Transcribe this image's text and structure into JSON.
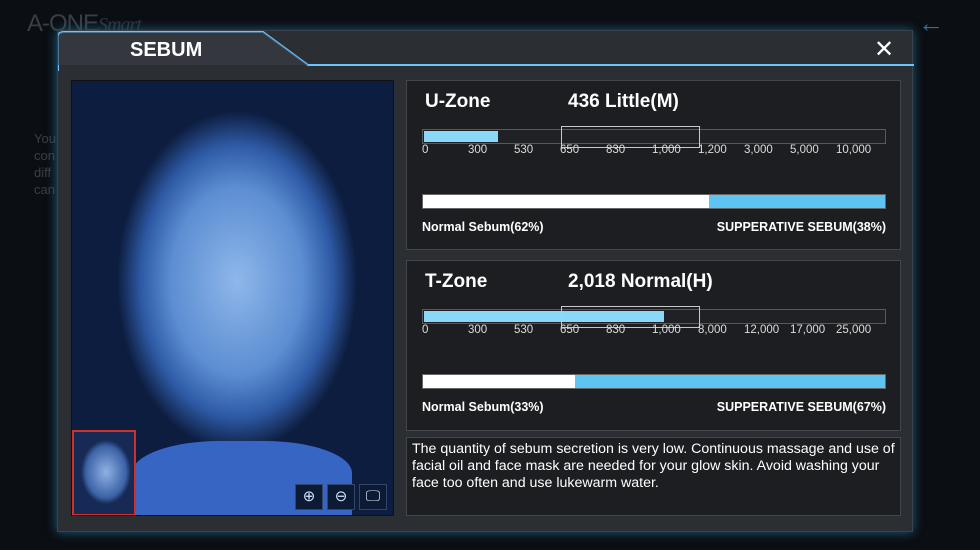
{
  "background": {
    "logo": "A-ONE",
    "logo_script": "Smart",
    "text_lines": [
      "You",
      "con",
      "diff",
      "can"
    ]
  },
  "modal": {
    "title": "SEBUM",
    "close_label": "✕"
  },
  "image": {
    "tools": [
      {
        "icon": "zoom-in-icon",
        "glyph": "⊕"
      },
      {
        "icon": "zoom-out-icon",
        "glyph": "⊖"
      },
      {
        "icon": "monitor-wand-icon",
        "glyph": "🖵"
      }
    ]
  },
  "zones": [
    {
      "name": "U-Zone",
      "value": "436 Little(M)",
      "fill_fraction": 0.16,
      "ticks": [
        "0",
        "300",
        "530",
        "650",
        "830",
        "1,000",
        "1,200",
        "3,000",
        "5,000",
        "10,000"
      ],
      "normal_label": "Normal Sebum(62%)",
      "normal_pct": 62,
      "supp_label": "SUPPERATIVE SEBUM(38%)"
    },
    {
      "name": "T-Zone",
      "value": "2,018 Normal(H)",
      "fill_fraction": 0.52,
      "ticks": [
        "0",
        "300",
        "530",
        "650",
        "830",
        "1,000",
        "8,000",
        "12,000",
        "17,000",
        "25,000"
      ],
      "normal_label": "Normal Sebum(33%)",
      "normal_pct": 33,
      "supp_label": "SUPPERATIVE SEBUM(67%)"
    }
  ],
  "advice": "The quantity of sebum secretion is very low. Continuous massage and use of facial oil and face mask are needed for your glow skin. Avoid washing your face too often and use lukewarm water.",
  "colors": {
    "accent": "#5ec4f2",
    "scale_fill": "#8ad8f7",
    "thumb_border": "#d0302c"
  }
}
